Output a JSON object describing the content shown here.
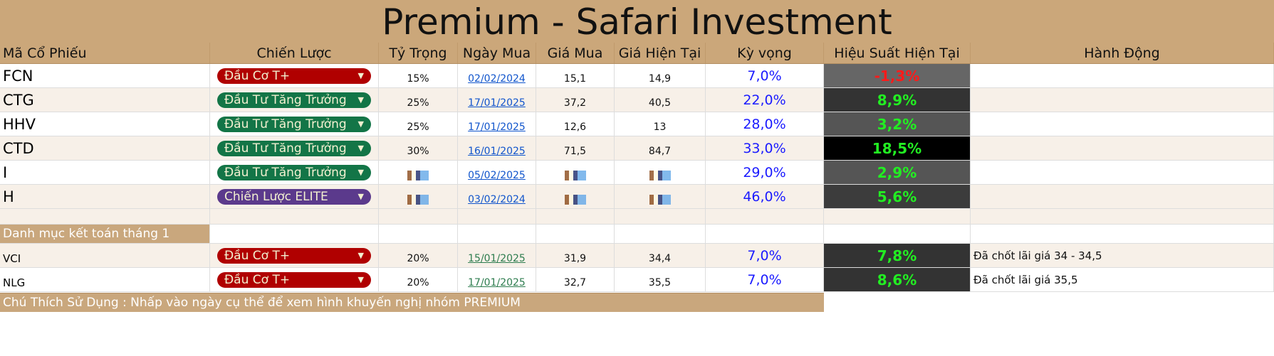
{
  "title": "Premium - Safari Investment",
  "headers": [
    "Mã Cổ Phiếu",
    "Chiến Lược",
    "Tỷ Trọng",
    "Ngày Mua",
    "Giá Mua",
    "Giá Hiện Tại",
    "Kỳ vọng",
    "Hiệu Suất Hiện Tại",
    "Hành Động"
  ],
  "colors": {
    "header_bg": "#cba77a",
    "dau_co": "#b00000",
    "tang_truong": "#137547",
    "elite": "#5b3a8c",
    "perf_pos": "#22ee22",
    "perf_neg": "#ff1a1a",
    "expect": "#1a1aff"
  },
  "rows": [
    {
      "ticker": "FCN",
      "strategy": "Đầu Cơ T+",
      "weight": "15%",
      "date": "02/02/2024",
      "buy": "15,1",
      "current": "14,9",
      "expect": "7,0%",
      "perf": "-1,3%",
      "action": ""
    },
    {
      "ticker": "CTG",
      "strategy": "Đầu Tư Tăng Trưởng",
      "weight": "25%",
      "date": "17/01/2025",
      "buy": "37,2",
      "current": "40,5",
      "expect": "22,0%",
      "perf": "8,9%",
      "action": ""
    },
    {
      "ticker": "HHV",
      "strategy": "Đầu Tư Tăng Trưởng",
      "weight": "25%",
      "date": "17/01/2025",
      "buy": "12,6",
      "current": "13",
      "expect": "28,0%",
      "perf": "3,2%",
      "action": ""
    },
    {
      "ticker": "CTD",
      "strategy": "Đầu Tư Tăng Trưởng",
      "weight": "30%",
      "date": "16/01/2025",
      "buy": "71,5",
      "current": "84,7",
      "expect": "33,0%",
      "perf": "18,5%",
      "action": ""
    },
    {
      "ticker": "I",
      "strategy": "Đầu Tư Tăng Trưởng",
      "weight": "",
      "date": "05/02/2025",
      "buy": "",
      "current": "",
      "expect": "29,0%",
      "perf": "2,9%",
      "action": ""
    },
    {
      "ticker": "H",
      "strategy": "Chiến Lược ELITE",
      "weight": "",
      "date": "03/02/2024",
      "buy": "",
      "current": "",
      "expect": "46,0%",
      "perf": "5,6%",
      "action": ""
    }
  ],
  "section_title": "Danh mục kết toán tháng 1",
  "closed_rows": [
    {
      "ticker": "VCI",
      "strategy": "Đầu Cơ T+",
      "weight": "20%",
      "date": "15/01/2025",
      "buy": "31,9",
      "current": "34,4",
      "expect": "7,0%",
      "perf": "7,8%",
      "action": "Đã chốt lãi giá 34 - 34,5"
    },
    {
      "ticker": "NLG",
      "strategy": "Đầu Cơ T+",
      "weight": "20%",
      "date": "17/01/2025",
      "buy": "32,7",
      "current": "35,5",
      "expect": "7,0%",
      "perf": "8,6%",
      "action": "Đã chốt lãi giá 35,5"
    }
  ],
  "footnote": "Chú Thích Sử Dụng : Nhấp vào ngày cụ thể để xem hình khuyến nghị nhóm PREMIUM"
}
